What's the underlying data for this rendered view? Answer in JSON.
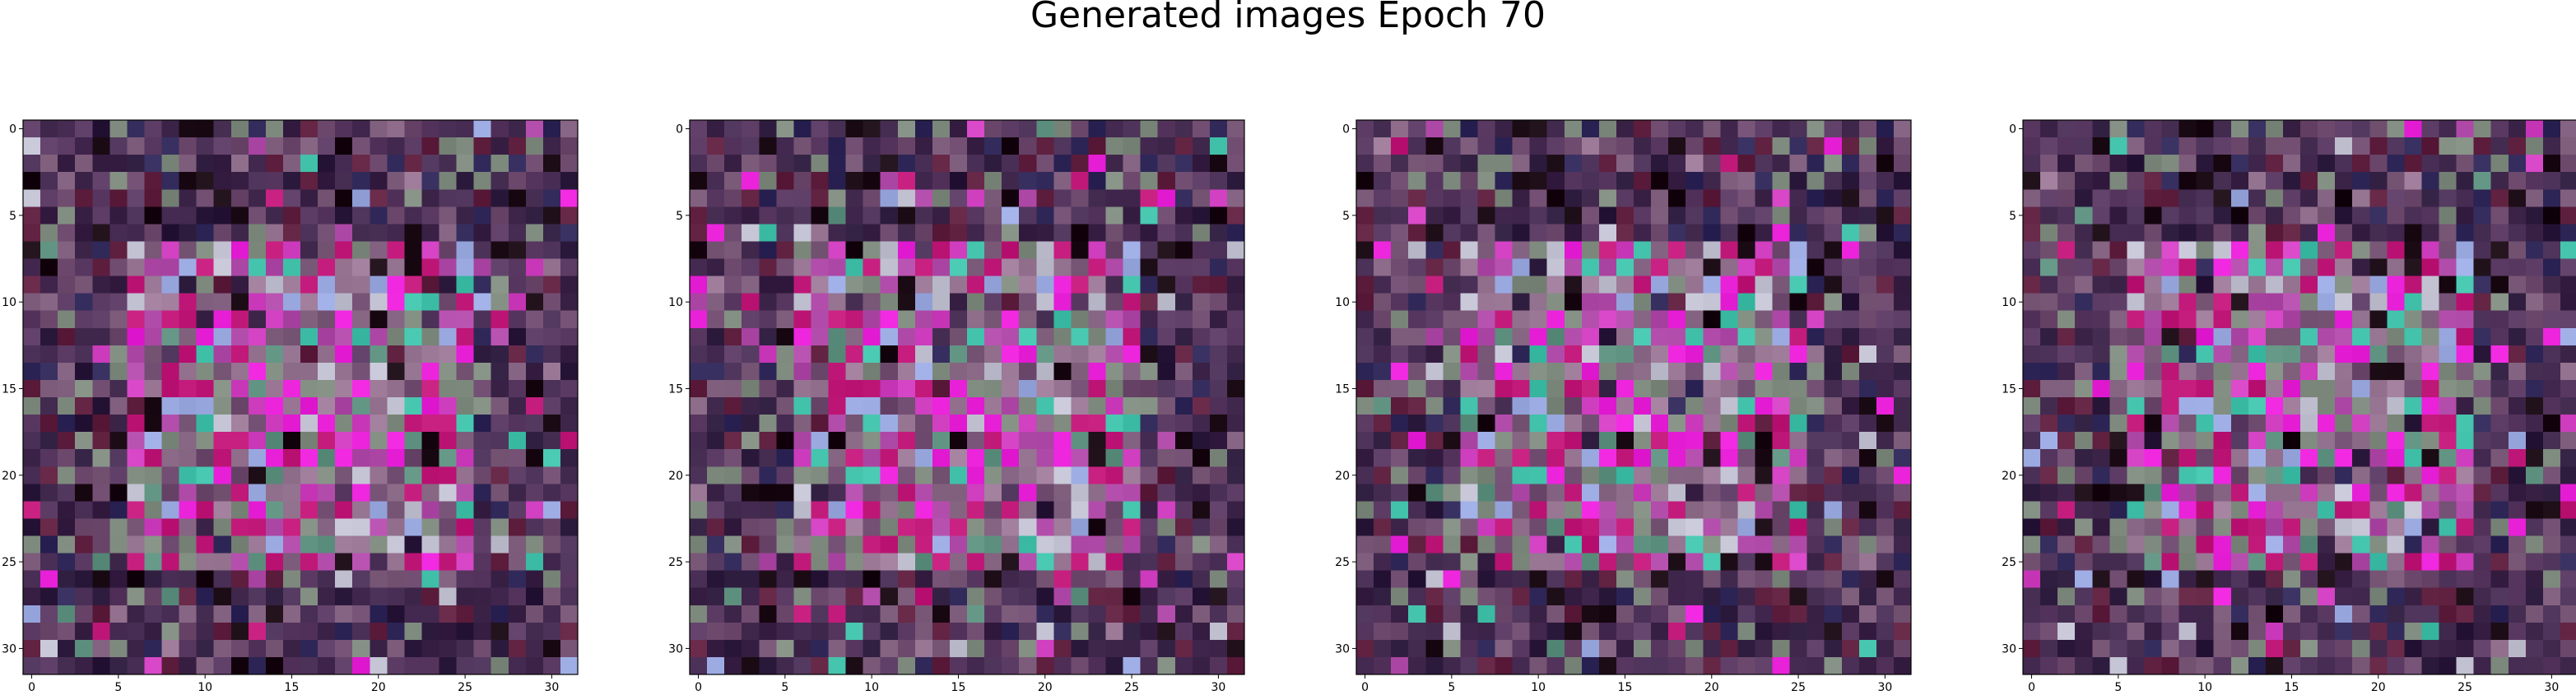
{
  "figure": {
    "title": "Generated images Epoch 70"
  },
  "chart_data": [
    {
      "type": "heatmap",
      "image": 1,
      "xlim": [
        -0.5,
        31.5
      ],
      "ylim": [
        31.5,
        -0.5
      ],
      "y_inverted": true,
      "x_ticks": [
        "0",
        "5",
        "10",
        "15",
        "20",
        "25",
        "30"
      ],
      "y_ticks": [
        "0",
        "5",
        "10",
        "15",
        "20",
        "25",
        "30"
      ],
      "grid": false,
      "pixel_grid": "32x32 RGB",
      "palette": [
        "#2c1a3c",
        "#3b2347",
        "#4a2f56",
        "#5a3a62",
        "#6e4a6e",
        "#7c5a7a",
        "#8a6a86",
        "#9a7896",
        "#7e8a7e",
        "#5e9080",
        "#b04aa8",
        "#d040c0",
        "#e820d8",
        "#c01878",
        "#c0c0d0",
        "#9aa8e0",
        "#40c0a8",
        "#1a0a14",
        "#602040",
        "#302858"
      ]
    },
    {
      "type": "heatmap",
      "image": 2,
      "xlim": [
        -0.5,
        31.5
      ],
      "ylim": [
        31.5,
        -0.5
      ],
      "y_inverted": true,
      "x_ticks": [
        "0",
        "5",
        "10",
        "15",
        "20",
        "25",
        "30"
      ],
      "y_ticks": [
        "0",
        "5",
        "10",
        "15",
        "20",
        "25",
        "30"
      ],
      "grid": false,
      "pixel_grid": "32x32 RGB",
      "palette": [
        "#2c1a3c",
        "#3b2347",
        "#4a2f56",
        "#5a3a62",
        "#6e4a6e",
        "#7c5a7a",
        "#8a6a86",
        "#9a7896",
        "#7e8a7e",
        "#5e9080",
        "#b04aa8",
        "#d040c0",
        "#e820d8",
        "#c01878",
        "#c0c0d0",
        "#9aa8e0",
        "#40c0a8",
        "#1a0a14",
        "#602040",
        "#302858"
      ]
    },
    {
      "type": "heatmap",
      "image": 3,
      "xlim": [
        -0.5,
        31.5
      ],
      "ylim": [
        31.5,
        -0.5
      ],
      "y_inverted": true,
      "x_ticks": [
        "0",
        "5",
        "10",
        "15",
        "20",
        "25",
        "30"
      ],
      "y_ticks": [
        "0",
        "5",
        "10",
        "15",
        "20",
        "25",
        "30"
      ],
      "grid": false,
      "pixel_grid": "32x32 RGB",
      "palette": [
        "#2c1a3c",
        "#3b2347",
        "#4a2f56",
        "#5a3a62",
        "#6e4a6e",
        "#7c5a7a",
        "#8a6a86",
        "#9a7896",
        "#7e8a7e",
        "#5e9080",
        "#b04aa8",
        "#d040c0",
        "#e820d8",
        "#c01878",
        "#c0c0d0",
        "#9aa8e0",
        "#40c0a8",
        "#1a0a14",
        "#602040",
        "#302858"
      ]
    },
    {
      "type": "heatmap",
      "image": 4,
      "xlim": [
        -0.5,
        31.5
      ],
      "ylim": [
        31.5,
        -0.5
      ],
      "y_inverted": true,
      "x_ticks": [
        "0",
        "5",
        "10",
        "15",
        "20",
        "25",
        "30"
      ],
      "y_ticks": [
        "0",
        "5",
        "10",
        "15",
        "20",
        "25",
        "30"
      ],
      "grid": false,
      "pixel_grid": "32x32 RGB",
      "palette": [
        "#2c1a3c",
        "#3b2347",
        "#4a2f56",
        "#5a3a62",
        "#6e4a6e",
        "#7c5a7a",
        "#8a6a86",
        "#9a7896",
        "#7e8a7e",
        "#5e9080",
        "#b04aa8",
        "#d040c0",
        "#e820d8",
        "#c01878",
        "#c0c0d0",
        "#9aa8e0",
        "#40c0a8",
        "#1a0a14",
        "#602040",
        "#302858"
      ]
    }
  ]
}
